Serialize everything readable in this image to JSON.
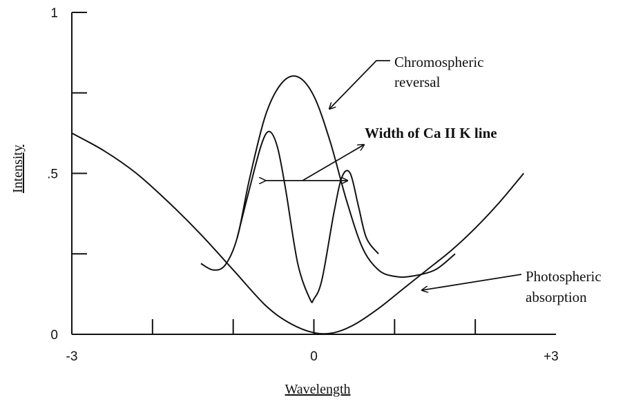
{
  "chart_data": {
    "type": "line",
    "title": "",
    "xlabel": "Wavelength",
    "ylabel": "Intensity",
    "xlim": [
      -3,
      3
    ],
    "ylim": [
      0,
      1
    ],
    "x_tick_labels": [
      {
        "value": -3,
        "label": "-3"
      },
      {
        "value": 0,
        "label": "0"
      },
      {
        "value": 3,
        "label": "+3"
      }
    ],
    "x_minor_ticks": [
      -2,
      -1,
      1,
      2
    ],
    "y_tick_labels": [
      {
        "value": 0,
        "label": "0"
      },
      {
        "value": 0.5,
        "label": ".5"
      },
      {
        "value": 1,
        "label": "1"
      }
    ],
    "y_minor_ticks": [
      0.25,
      0.75
    ],
    "series": [
      {
        "key": "photospheric",
        "x": [
          -3.0,
          -2.6,
          -2.2,
          -1.8,
          -1.4,
          -1.0,
          -0.6,
          -0.3,
          0.0,
          0.25,
          0.5,
          0.8,
          1.1,
          1.4,
          1.7,
          2.0,
          2.3,
          2.6
        ],
        "y": [
          0.625,
          0.57,
          0.5,
          0.41,
          0.31,
          0.2,
          0.09,
          0.035,
          0.005,
          0.005,
          0.03,
          0.08,
          0.14,
          0.2,
          0.26,
          0.33,
          0.41,
          0.5
        ]
      },
      {
        "key": "chromospheric",
        "x": [
          -1.4,
          -1.25,
          -1.1,
          -0.95,
          -0.8,
          -0.6,
          -0.4,
          -0.2,
          0.0,
          0.2,
          0.4,
          0.6,
          0.8,
          1.0,
          1.2,
          1.5,
          1.75
        ],
        "y": [
          0.22,
          0.2,
          0.215,
          0.3,
          0.48,
          0.68,
          0.78,
          0.8,
          0.74,
          0.6,
          0.42,
          0.27,
          0.2,
          0.18,
          0.18,
          0.2,
          0.25
        ]
      },
      {
        "key": "ca_ii_k",
        "x": [
          -0.95,
          -0.8,
          -0.65,
          -0.55,
          -0.45,
          -0.35,
          -0.2,
          -0.05,
          0.0,
          0.1,
          0.25,
          0.35,
          0.45,
          0.55,
          0.65,
          0.8
        ],
        "y": [
          0.3,
          0.45,
          0.59,
          0.63,
          0.58,
          0.45,
          0.22,
          0.11,
          0.11,
          0.17,
          0.38,
          0.49,
          0.5,
          0.4,
          0.3,
          0.25
        ]
      }
    ],
    "annotations": [
      {
        "key": "chromo",
        "lines": [
          "Chromospheric",
          "reversal"
        ],
        "bold": false
      },
      {
        "key": "width",
        "lines": [
          "Width of Ca II K line"
        ],
        "bold": true
      },
      {
        "key": "photo",
        "lines": [
          "Photospheric",
          "absorption"
        ],
        "bold": false
      }
    ]
  }
}
